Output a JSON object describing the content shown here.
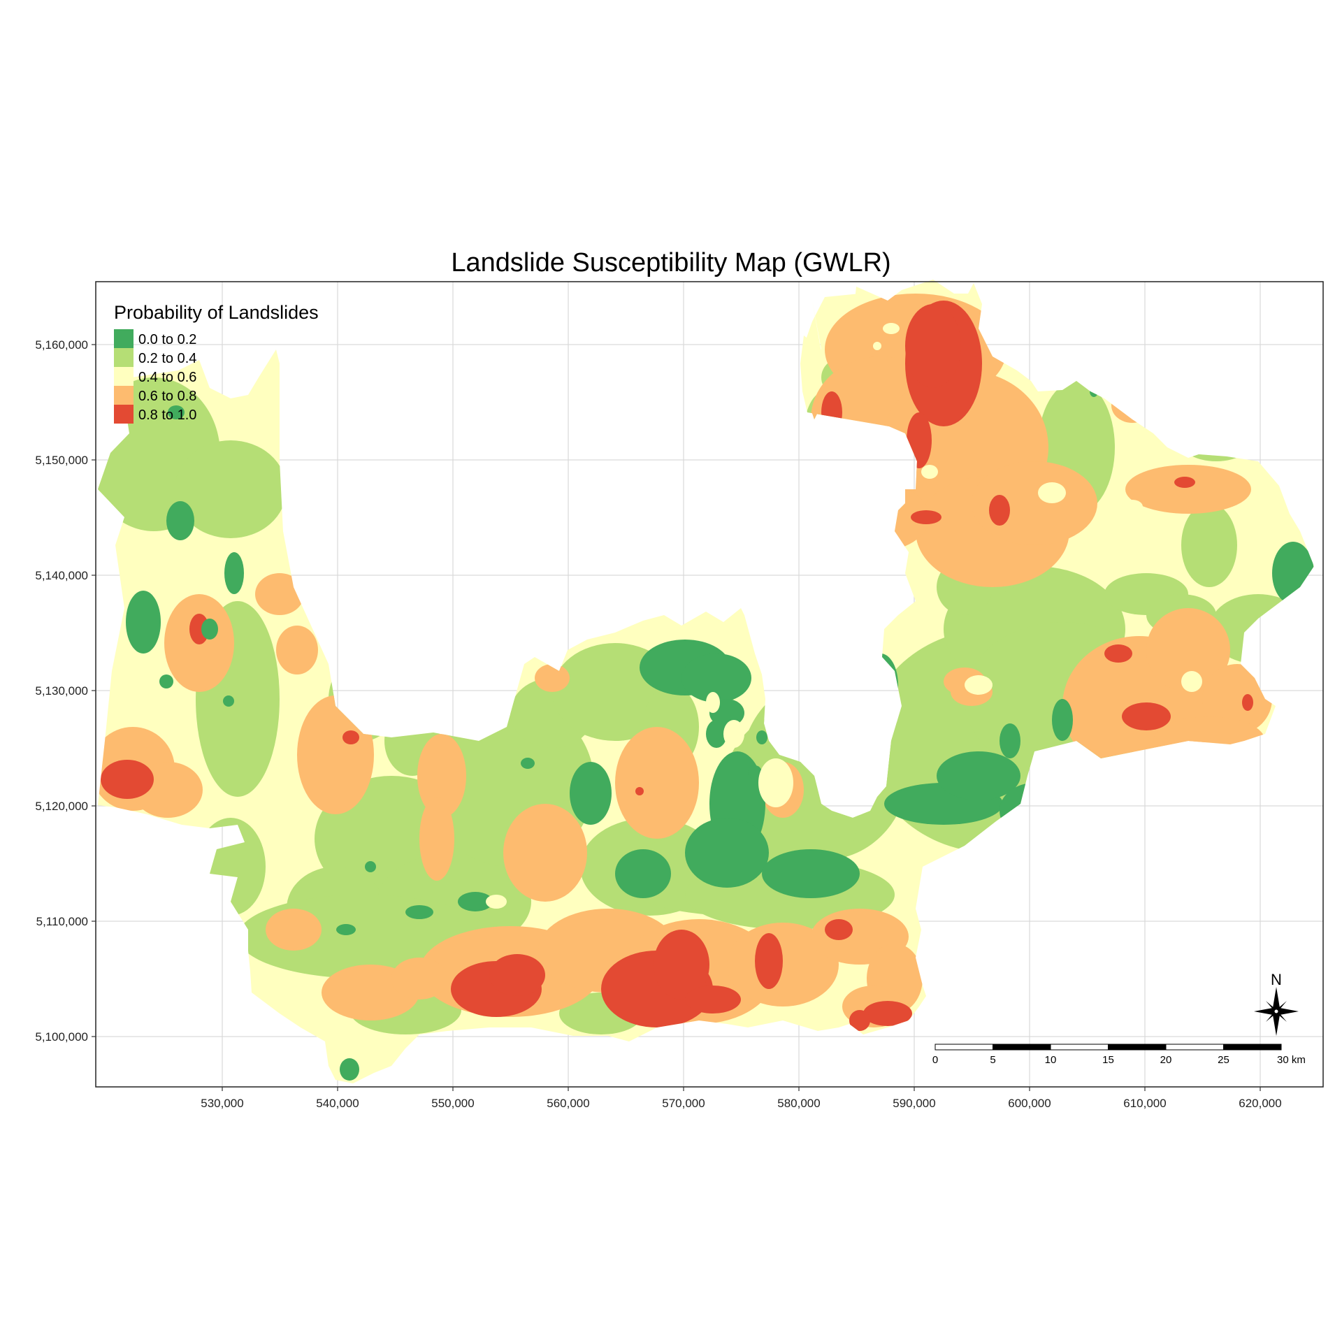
{
  "title": "Landslide Susceptibility Map (GWLR)",
  "legend": {
    "title": "Probability of Landslides",
    "classes": [
      {
        "label": "0.0 to 0.2",
        "color": "#41ab5d"
      },
      {
        "label": "0.2 to 0.4",
        "color": "#b5de75"
      },
      {
        "label": "0.4 to 0.6",
        "color": "#ffffbf"
      },
      {
        "label": "0.6 to 0.8",
        "color": "#fdbb6f"
      },
      {
        "label": "0.8 to 1.0",
        "color": "#e34a33"
      }
    ]
  },
  "axes": {
    "x_ticks": [
      "530,000",
      "540,000",
      "550,000",
      "560,000",
      "570,000",
      "580,000",
      "590,000",
      "600,000",
      "610,000",
      "620,000"
    ],
    "y_ticks": [
      "5,160,000",
      "5,150,000",
      "5,140,000",
      "5,130,000",
      "5,120,000",
      "5,110,000",
      "5,100,000"
    ]
  },
  "scale_bar": {
    "labels": [
      "0",
      "5",
      "10",
      "15",
      "20",
      "25",
      "30 km"
    ]
  },
  "north_arrow": {
    "label": "N",
    "icon": "compass-rose-icon"
  }
}
